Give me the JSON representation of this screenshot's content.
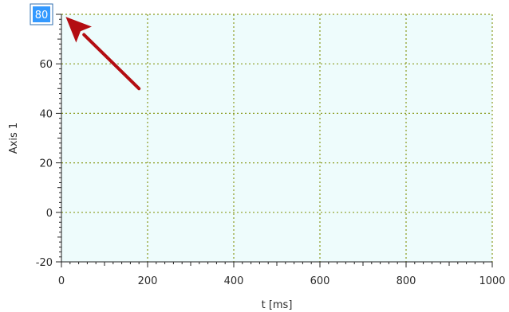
{
  "chart_data": {
    "type": "line",
    "title": "",
    "xlabel": "t [ms]",
    "ylabel": "Axis 1",
    "xlim": [
      0,
      1000
    ],
    "ylim": [
      -20,
      80
    ],
    "x_ticks": [
      0,
      200,
      400,
      600,
      800,
      1000
    ],
    "y_ticks": [
      -20,
      0,
      20,
      40,
      60,
      80
    ],
    "x_tick_labels": [
      "0",
      "200",
      "400",
      "600",
      "800",
      "1000"
    ],
    "y_tick_labels": [
      "-20",
      "0",
      "20",
      "40",
      "60",
      "80"
    ],
    "grid": true,
    "series": []
  },
  "axis_max_editor": {
    "value": "80",
    "selected": true
  },
  "annotation": {
    "type": "arrow",
    "from": {
      "x": 180,
      "y": 50
    },
    "to": {
      "x": 10,
      "y": 79
    }
  },
  "colors": {
    "plot_background": "#eefcfc",
    "grid": "#8a9a1e",
    "axis": "#222222",
    "arrow": "#b30d12",
    "selection": "#3399ff",
    "editor_border": "#2f6fb0"
  }
}
